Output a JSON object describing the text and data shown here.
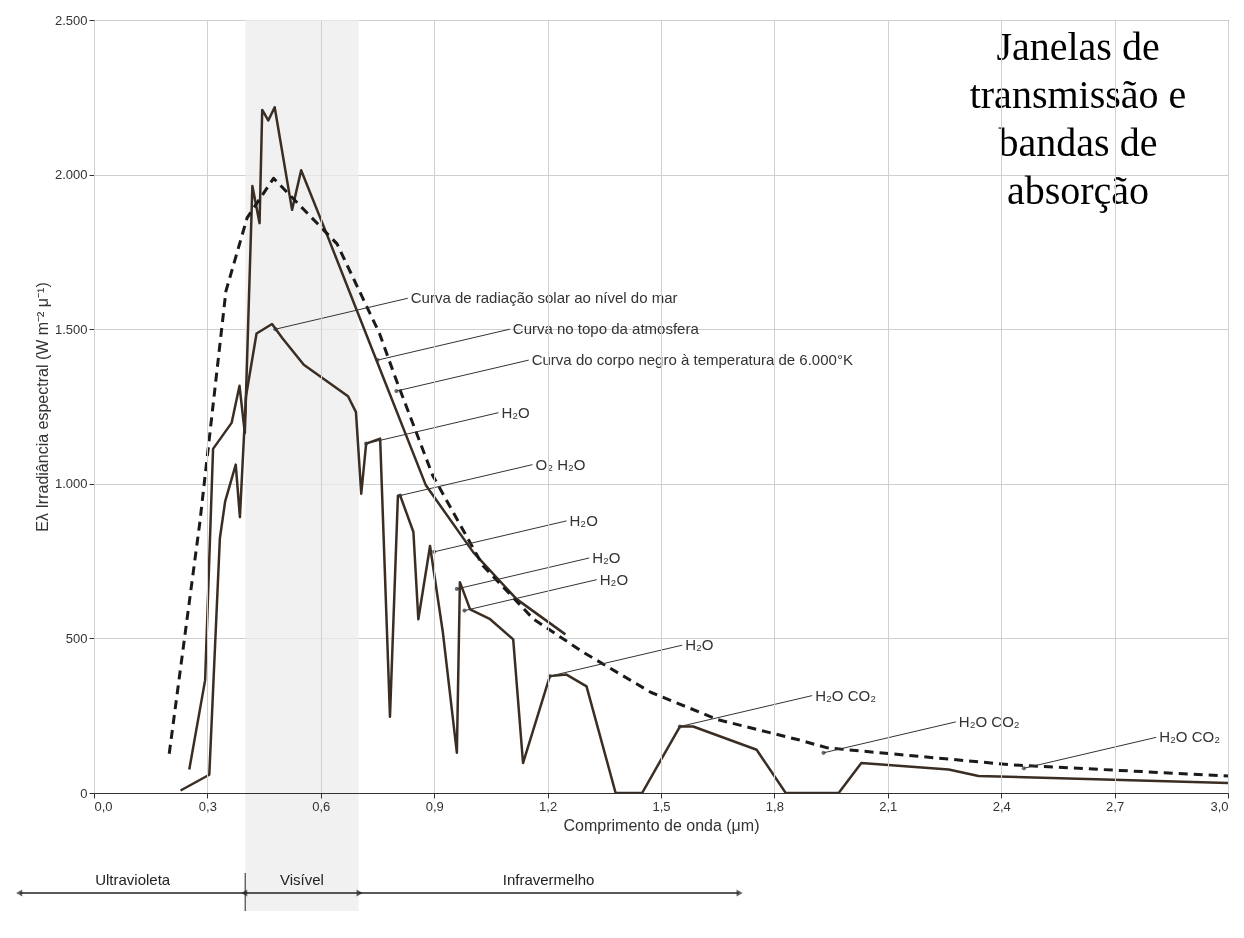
{
  "chart_data": {
    "type": "line",
    "title": "Janelas de transmissão e bandas de absorção",
    "xlabel": "Comprimento de onda (μm)",
    "ylabel": "Eλ Irradiância espectral (W m⁻² μ⁻¹)",
    "xlim": [
      0,
      3.0
    ],
    "ylim": [
      0,
      2500
    ],
    "xticks": [
      {
        "value": 0,
        "label": "0,0"
      },
      {
        "value": 0.3,
        "label": "0,3"
      },
      {
        "value": 0.6,
        "label": "0,6"
      },
      {
        "value": 0.9,
        "label": "0,9"
      },
      {
        "value": 1.2,
        "label": "1,2"
      },
      {
        "value": 1.5,
        "label": "1,5"
      },
      {
        "value": 1.8,
        "label": "1,8"
      },
      {
        "value": 2.1,
        "label": "2,1"
      },
      {
        "value": 2.4,
        "label": "2,4"
      },
      {
        "value": 2.7,
        "label": "2,7"
      },
      {
        "value": 3.0,
        "label": "3,0"
      }
    ],
    "yticks": [
      0,
      500,
      {
        "value": 1000,
        "label": "1.000"
      },
      {
        "value": 1500,
        "label": "1.500"
      },
      {
        "value": 2000,
        "label": "2.000"
      },
      {
        "value": 2500,
        "label": "2.500"
      }
    ],
    "grid": true,
    "marker": "none",
    "series": [
      {
        "color": "#3a2e24",
        "line_style": "solid",
        "x": [
          0.229,
          0.305,
          0.333,
          0.347,
          0.375,
          0.386,
          0.402,
          0.43,
          0.471,
          0.499,
          0.555,
          0.672,
          0.693,
          0.707,
          0.72,
          0.757,
          0.783,
          0.804,
          0.81,
          0.845,
          0.858,
          0.889,
          0.923,
          0.96,
          0.968,
          0.995,
          1.048,
          1.109,
          1.135,
          1.206,
          1.25,
          1.303,
          1.38,
          1.45,
          1.55,
          1.585,
          1.753,
          1.83,
          1.97,
          2.03,
          2.261,
          2.34,
          3.0
        ],
        "values": [
          8,
          59,
          824,
          943,
          1062,
          892,
          1282,
          1486,
          1517,
          1470,
          1385,
          1283,
          1232,
          968,
          1130,
          1146,
          247,
          961,
          962,
          844,
          562,
          799,
          519,
          130,
          682,
          594,
          562,
          497,
          97,
          378,
          383,
          345,
          0,
          0,
          215,
          215,
          140,
          0,
          0,
          97,
          76,
          55,
          32
        ]
      },
      {
        "color": "#3a2e24",
        "line_style": "solid",
        "x": [
          0.252,
          0.294,
          0.315,
          0.364,
          0.385,
          0.399,
          0.419,
          0.438,
          0.445,
          0.461,
          0.478,
          0.524,
          0.548,
          0.615,
          0.741,
          0.878,
          1.003,
          1.118,
          1.247
        ],
        "values": [
          76,
          365,
          1113,
          1197,
          1317,
          1164,
          1963,
          1843,
          2209,
          2175,
          2218,
          1886,
          2014,
          1810,
          1419,
          995,
          779,
          627,
          513
        ]
      },
      {
        "color": "#1a1a1a",
        "line_style": "dashed",
        "x": [
          0.199,
          0.28,
          0.349,
          0.405,
          0.475,
          0.643,
          0.755,
          0.798,
          0.896,
          1.029,
          1.163,
          1.296,
          1.474,
          1.651,
          1.864,
          1.94,
          2.426,
          3.0
        ],
        "values": [
          127,
          875,
          1623,
          1860,
          1988,
          1776,
          1487,
          1341,
          1027,
          735,
          562,
          454,
          325,
          237,
          172,
          146,
          91,
          55
        ]
      }
    ],
    "annotations": [
      {
        "text": "Curva de radiação solar ao nível do mar",
        "x": 0.48,
        "y": 1500
      },
      {
        "text": "Curva no topo da atmosfera",
        "x": 0.75,
        "y": 1400
      },
      {
        "text": "Curva do corpo negro à temperatura de 6.000°K",
        "x": 0.8,
        "y": 1300
      },
      {
        "text": "H₂O",
        "x": 0.72,
        "y": 1130
      },
      {
        "text": "O₂ H₂O",
        "x": 0.81,
        "y": 962
      },
      {
        "text": "H₂O",
        "x": 0.9,
        "y": 780
      },
      {
        "text": "H₂O",
        "x": 0.96,
        "y": 660
      },
      {
        "text": "H₂O",
        "x": 0.98,
        "y": 590
      },
      {
        "text": "H₂O",
        "x": 1.206,
        "y": 378
      },
      {
        "text": "H₂O CO₂",
        "x": 1.55,
        "y": 215
      },
      {
        "text": "H₂O CO₂",
        "x": 1.93,
        "y": 130
      },
      {
        "text": "H₂O CO₂",
        "x": 2.46,
        "y": 80
      },
      "Ultravioleta",
      "Infravermelho"
    ],
    "bands": [
      {
        "axis": "x",
        "from": 0.4,
        "to": 0.7,
        "label": "Visível",
        "color": "#ececec"
      }
    ]
  }
}
